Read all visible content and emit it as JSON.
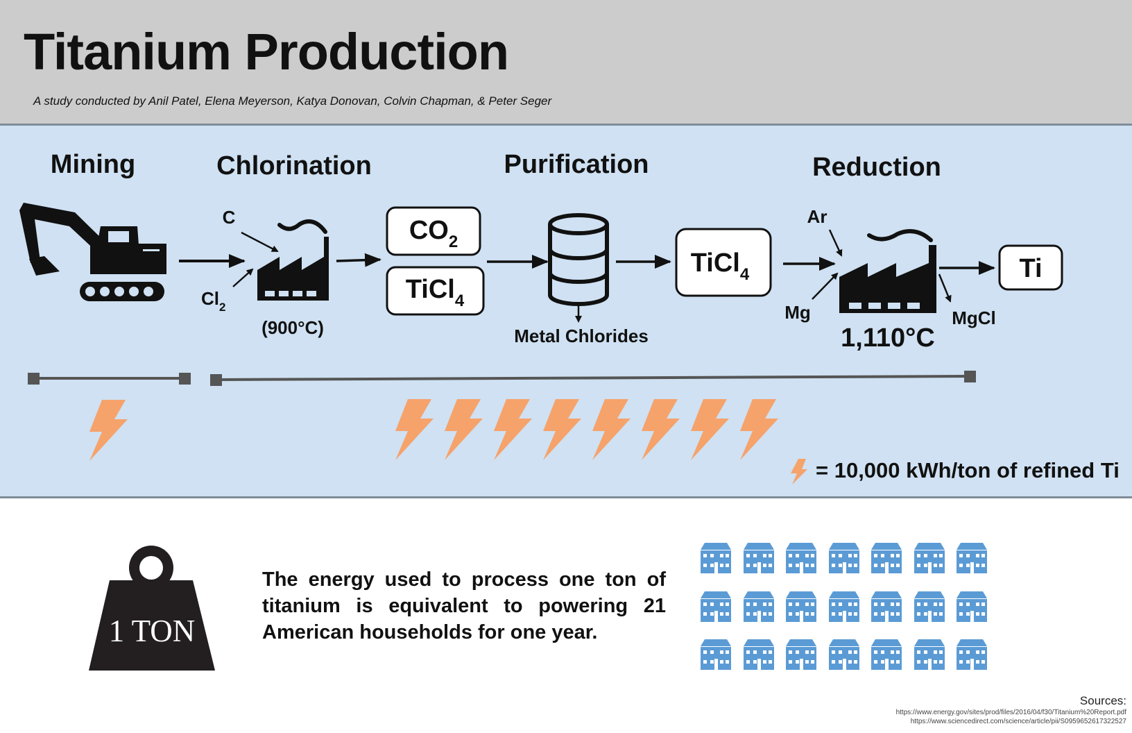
{
  "header": {
    "title": "Titanium Production",
    "subtitle": "A study conducted by Anil Patel, Elena Meyerson, Katya Donovan, Colvin Chapman, & Peter Seger"
  },
  "stages": {
    "mining": "Mining",
    "chlorination": "Chlorination",
    "purification": "Purification",
    "reduction": "Reduction"
  },
  "chlorination": {
    "input_c": "C",
    "input_cl": "Cl",
    "input_cl_sub": "2",
    "temperature": "(900°C)"
  },
  "outputs": {
    "co2": "CO",
    "co2_sub": "2",
    "ticl4_a": "TiCl",
    "ticl4_a_sub": "4"
  },
  "purification": {
    "byproduct": "Metal Chlorides",
    "product": "TiCl",
    "product_sub": "4"
  },
  "reduction": {
    "input_ar": "Ar",
    "input_mg": "Mg",
    "byproduct": "MgCl",
    "temperature": "1,110°C",
    "product": "Ti"
  },
  "energy": {
    "mining_bolts": 1,
    "processing_bolts": 8,
    "bolt_color": "#f6a26b",
    "legend": "= 10,000 kWh/ton of refined Ti"
  },
  "summary": {
    "weight_label": "1 TON",
    "statement": "The energy used to process one ton of titanium is equivalent to powering 21 American households for one year.",
    "households": 21,
    "house_color": "#5b9bd5"
  },
  "sources": {
    "label": "Sources:",
    "links": [
      "https://www.energy.gov/sites/prod/files/2016/04/f30/Titanium%20Report.pdf",
      "https://www.sciencedirect.com/science/article/pii/S0959652617322527"
    ]
  }
}
